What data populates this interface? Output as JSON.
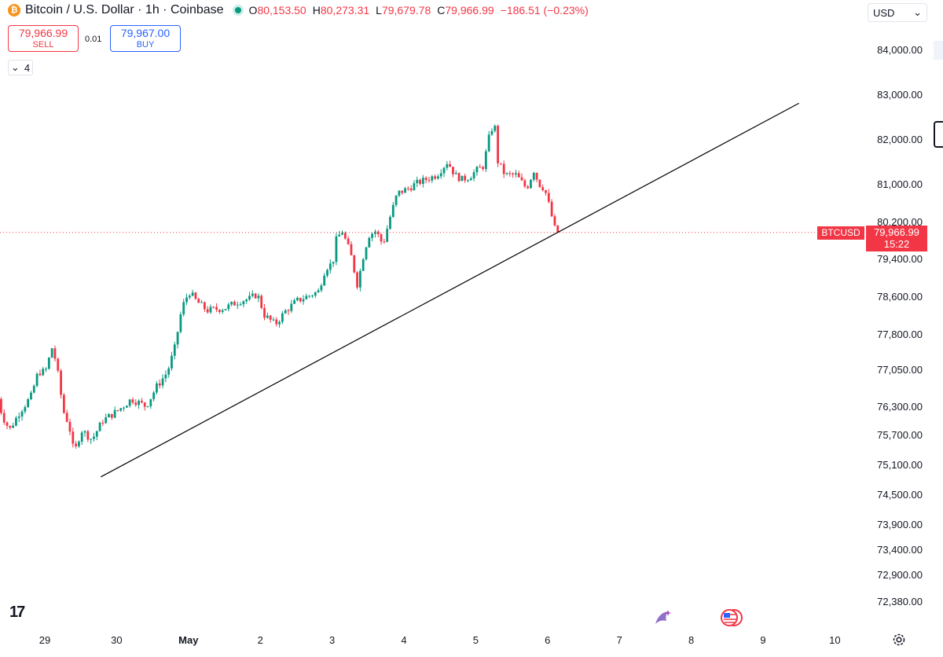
{
  "header": {
    "coin_symbol": "₿",
    "title": "Bitcoin / U.S. Dollar · 1h · Coinbase",
    "open_key": "O",
    "open": "80,153.50",
    "high_key": "H",
    "high": "80,273.31",
    "low_key": "L",
    "low": "79,679.78",
    "close_key": "C",
    "close": "79,966.99",
    "change": "−186.51 (−0.23%)"
  },
  "trade": {
    "sell_price": "79,966.99",
    "sell_label": "SELL",
    "spread": "0.01",
    "buy_price": "79,967.00",
    "buy_label": "BUY"
  },
  "indicators_toggle": {
    "chevron": "⌄",
    "count": "4"
  },
  "currency": {
    "label": "USD",
    "chevron": "⌄"
  },
  "price_tag": {
    "symbol": "BTCUSD",
    "price": "79,966.99",
    "countdown": "15:22"
  },
  "logo": {
    "text": "17"
  },
  "icons": {
    "coin": "bitcoin-icon",
    "sparkle": "sparkle-icon",
    "flag": "us-flag-icon",
    "settings": "gear-icon"
  },
  "colors": {
    "up": "#089981",
    "down": "#f23645",
    "trendline": "#000000",
    "buy": "#2962ff"
  },
  "chart_data": {
    "type": "candlestick",
    "y_ticks": [
      {
        "label": "84,000.00",
        "value": 84000
      },
      {
        "label": "83,000.00",
        "value": 83000
      },
      {
        "label": "82,000.00",
        "value": 82000
      },
      {
        "label": "81,000.00",
        "value": 81000
      },
      {
        "label": "80,200.00",
        "value": 80200
      },
      {
        "label": "79,400.00",
        "value": 79400
      },
      {
        "label": "78,600.00",
        "value": 78600
      },
      {
        "label": "77,800.00",
        "value": 77800
      },
      {
        "label": "77,050.00",
        "value": 77050
      },
      {
        "label": "76,300.00",
        "value": 76300
      },
      {
        "label": "75,700.00",
        "value": 75700
      },
      {
        "label": "75,100.00",
        "value": 75100
      },
      {
        "label": "74,500.00",
        "value": 74500
      },
      {
        "label": "73,900.00",
        "value": 73900
      },
      {
        "label": "73,400.00",
        "value": 73400
      },
      {
        "label": "72,900.00",
        "value": 72900
      },
      {
        "label": "72,380.00",
        "value": 72380
      }
    ],
    "x_ticks": [
      {
        "label": "29",
        "day": 0
      },
      {
        "label": "30",
        "day": 1
      },
      {
        "label": "May",
        "day": 2
      },
      {
        "label": "2",
        "day": 3
      },
      {
        "label": "3",
        "day": 4
      },
      {
        "label": "4",
        "day": 5
      },
      {
        "label": "5",
        "day": 6
      },
      {
        "label": "6",
        "day": 7
      },
      {
        "label": "7",
        "day": 8
      },
      {
        "label": "8",
        "day": 9
      },
      {
        "label": "9",
        "day": 10
      },
      {
        "label": "10",
        "day": 11
      }
    ],
    "candle_interval": "1h",
    "path_anchors": [
      [
        -0.65,
        76700
      ],
      [
        -0.55,
        76100
      ],
      [
        -0.45,
        75800
      ],
      [
        -0.3,
        76200
      ],
      [
        -0.15,
        76500
      ],
      [
        -0.05,
        77000
      ],
      [
        0.05,
        77000
      ],
      [
        0.15,
        77550
      ],
      [
        0.22,
        77000
      ],
      [
        0.3,
        76200
      ],
      [
        0.38,
        75900
      ],
      [
        0.45,
        75300
      ],
      [
        0.55,
        75800
      ],
      [
        0.7,
        75600
      ],
      [
        0.85,
        76000
      ],
      [
        1.05,
        76200
      ],
      [
        1.25,
        76450
      ],
      [
        1.45,
        76300
      ],
      [
        1.6,
        76700
      ],
      [
        1.75,
        77000
      ],
      [
        1.85,
        77500
      ],
      [
        1.95,
        78350
      ],
      [
        2.05,
        78700
      ],
      [
        2.15,
        78500
      ],
      [
        2.3,
        78300
      ],
      [
        2.55,
        78350
      ],
      [
        2.75,
        78500
      ],
      [
        2.9,
        78550
      ],
      [
        3.0,
        78650
      ],
      [
        3.1,
        78200
      ],
      [
        3.25,
        78000
      ],
      [
        3.4,
        78300
      ],
      [
        3.55,
        78500
      ],
      [
        3.7,
        78600
      ],
      [
        3.85,
        78700
      ],
      [
        3.95,
        79200
      ],
      [
        4.05,
        79300
      ],
      [
        4.1,
        79800
      ],
      [
        4.18,
        80000
      ],
      [
        4.3,
        79500
      ],
      [
        4.4,
        78800
      ],
      [
        4.45,
        79300
      ],
      [
        4.55,
        79900
      ],
      [
        4.65,
        80000
      ],
      [
        4.75,
        79700
      ],
      [
        4.85,
        80300
      ],
      [
        4.95,
        80800
      ],
      [
        5.1,
        80900
      ],
      [
        5.2,
        81000
      ],
      [
        5.35,
        81100
      ],
      [
        5.5,
        81200
      ],
      [
        5.65,
        81500
      ],
      [
        5.75,
        81200
      ],
      [
        5.85,
        81100
      ],
      [
        5.95,
        81150
      ],
      [
        6.05,
        81300
      ],
      [
        6.15,
        81400
      ],
      [
        6.22,
        82000
      ],
      [
        6.3,
        82400
      ],
      [
        6.35,
        81500
      ],
      [
        6.45,
        81200
      ],
      [
        6.6,
        81200
      ],
      [
        6.75,
        80900
      ],
      [
        6.85,
        81300
      ],
      [
        6.92,
        81000
      ],
      [
        7.0,
        80900
      ],
      [
        7.07,
        80500
      ],
      [
        7.15,
        80000
      ],
      [
        7.18,
        79966.99
      ]
    ],
    "trendline": {
      "from": {
        "day": 0.78,
        "value": 74850
      },
      "to": {
        "day": 10.5,
        "value": 82800
      }
    },
    "current_price": 79966.99,
    "last_price_line": "dotted"
  }
}
